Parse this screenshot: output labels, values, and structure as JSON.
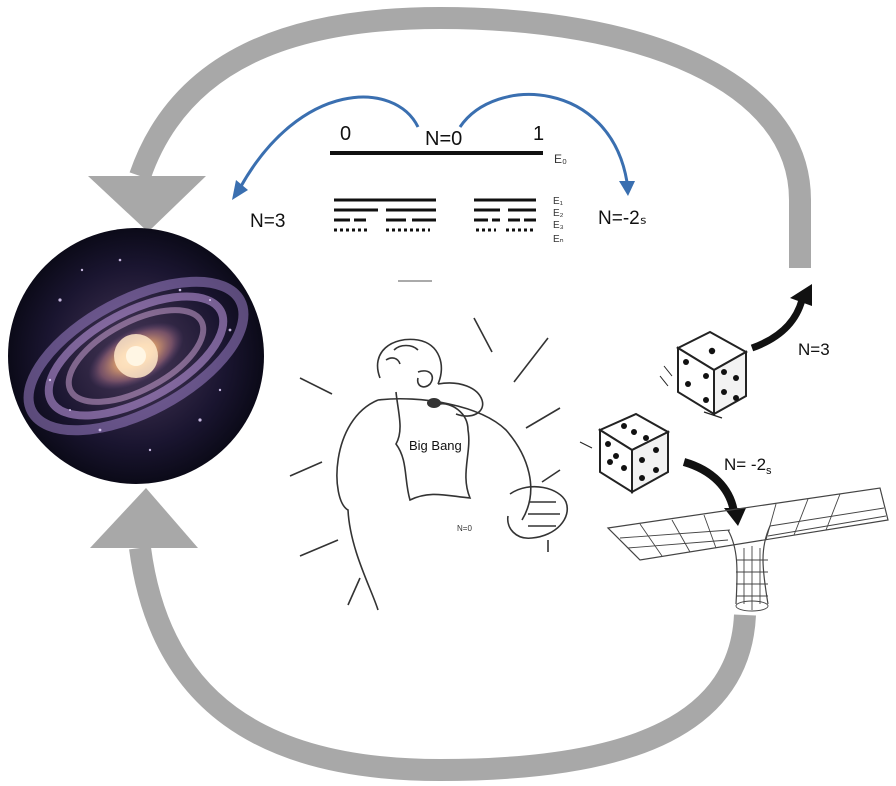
{
  "scale": {
    "left_tick": "0",
    "right_tick": "1",
    "center_label": "N=0",
    "ground_label": "E₀",
    "level_labels": [
      "E₁",
      "E₂",
      "E₃",
      "Eₙ"
    ]
  },
  "left_outcome": "N=3",
  "right_outcome": "N=-2ₛ",
  "figure": {
    "belly_text": "Big Bang",
    "hand_text": "N=0"
  },
  "dice_outcomes": {
    "upper": "N=3",
    "lower_prefix": "N= -2",
    "lower_subscript": "s"
  },
  "colors": {
    "cycle_arrow": "#a8a8a8",
    "curved_arrows": "#3a6fb0",
    "line_art": "#333333"
  }
}
